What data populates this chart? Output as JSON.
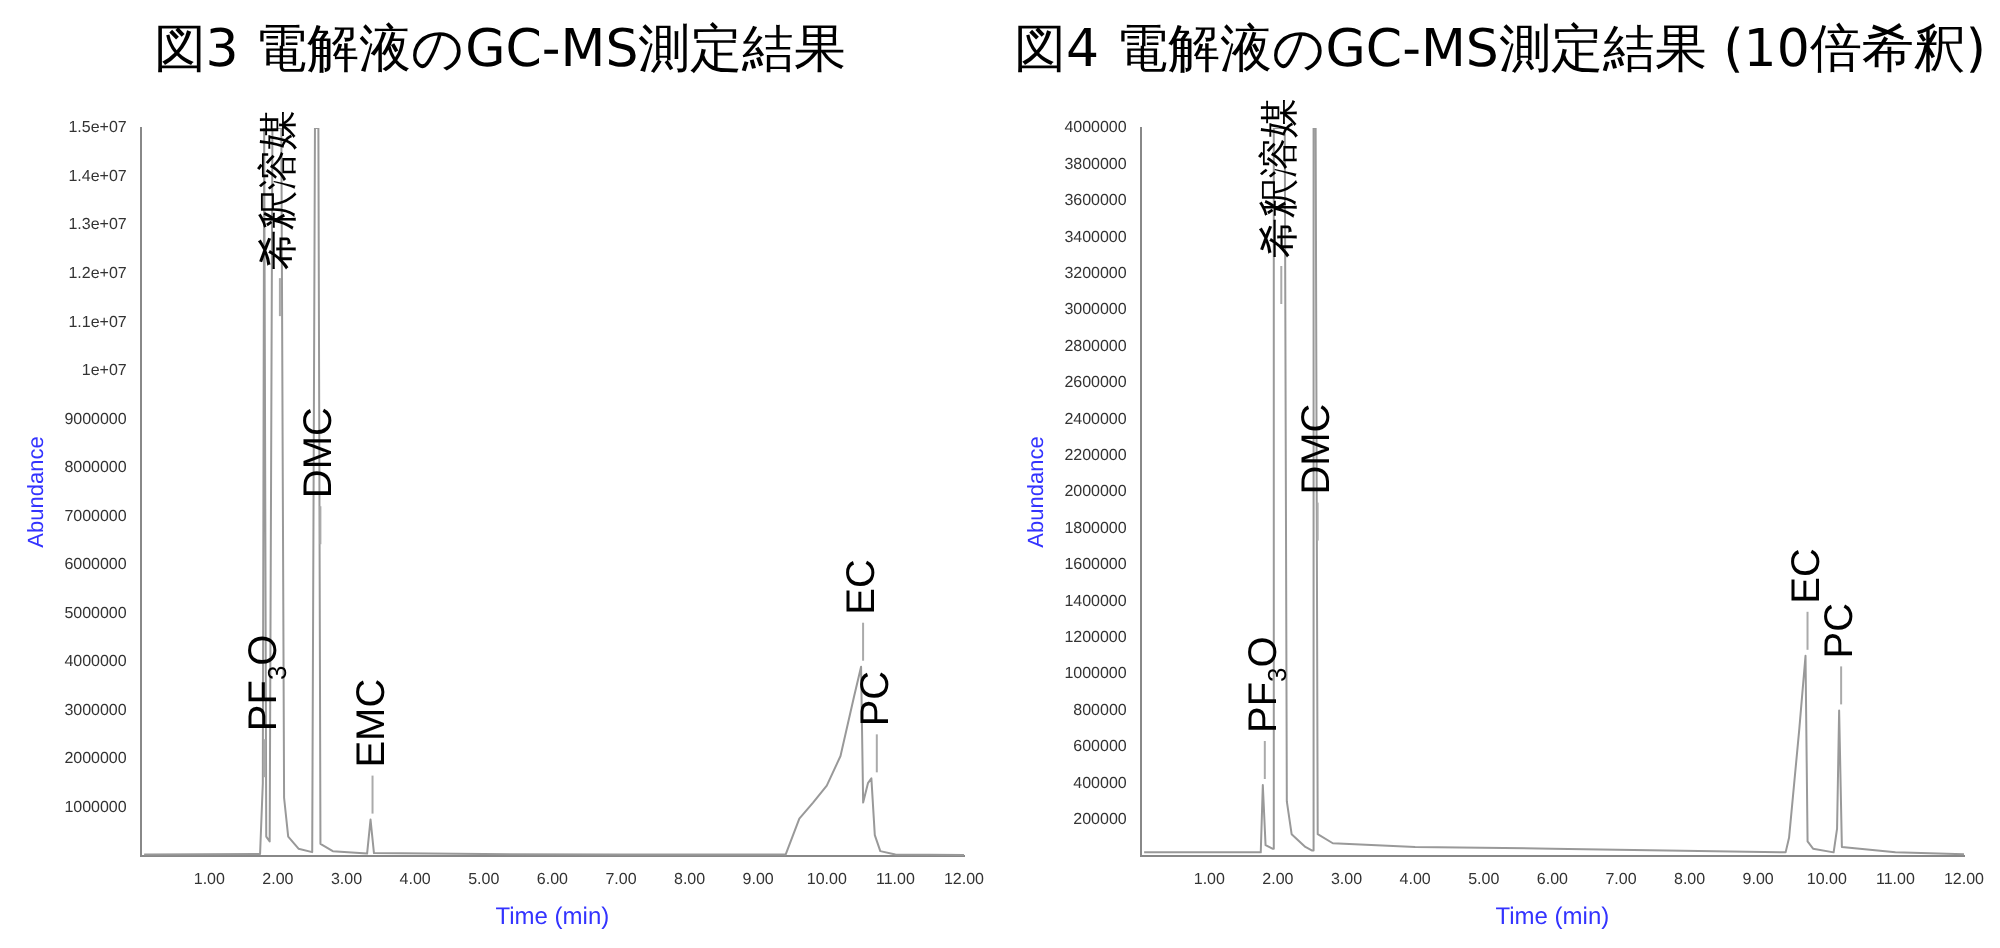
{
  "chart_data": [
    {
      "type": "line",
      "title": "図3 電解液のGC-MS測定結果",
      "xlabel": "Time (min)",
      "ylabel": "Abundance",
      "series": [
        {
          "color": "#999999",
          "x": [
            0.05,
            1.74,
            1.78,
            1.8,
            1.81,
            1.83,
            1.88,
            1.92,
            2.05,
            2.09,
            2.15,
            2.3,
            2.5,
            2.54,
            2.59,
            2.62,
            2.8,
            3.3,
            3.35,
            3.4,
            5,
            7,
            9.4,
            9.5,
            9.6,
            9.8,
            10,
            10.2,
            10.4,
            10.5,
            10.53,
            10.6,
            10.65,
            10.7,
            10.78,
            11,
            12
          ],
          "values": [
            30000,
            40000,
            1500000,
            15000000,
            15000000,
            400000,
            300000,
            15000000,
            15000000,
            1200000,
            400000,
            150000,
            80000,
            15000000,
            15000000,
            250000,
            100000,
            50000,
            750000,
            60000,
            40000,
            30000,
            30000,
            400000,
            770000,
            1100000,
            1450000,
            2060000,
            3300000,
            3900000,
            1100000,
            1500000,
            1600000,
            430000,
            100000,
            30000,
            20000
          ]
        }
      ],
      "xlim": [
        0,
        12
      ],
      "ylim": [
        0,
        15000000
      ],
      "xticks": [
        {
          "value": 1,
          "label": "1.00"
        },
        {
          "value": 2,
          "label": "2.00"
        },
        {
          "value": 3,
          "label": "3.00"
        },
        {
          "value": 4,
          "label": "4.00"
        },
        {
          "value": 5,
          "label": "5.00"
        },
        {
          "value": 6,
          "label": "6.00"
        },
        {
          "value": 7,
          "label": "7.00"
        },
        {
          "value": 8,
          "label": "8.00"
        },
        {
          "value": 9,
          "label": "9.00"
        },
        {
          "value": 10,
          "label": "10.00"
        },
        {
          "value": 11,
          "label": "11.00"
        },
        {
          "value": 12,
          "label": "12.00"
        }
      ],
      "yticks": [
        1000000,
        2000000,
        3000000,
        4000000,
        5000000,
        6000000,
        7000000,
        8000000,
        9000000,
        {
          "value": 10000000,
          "label": "1e+07"
        },
        {
          "value": 11000000,
          "label": "1.1e+07"
        },
        {
          "value": 12000000,
          "label": "1.2e+07"
        },
        {
          "value": 13000000,
          "label": "1.3e+07"
        },
        {
          "value": 14000000,
          "label": "1.4e+07"
        },
        {
          "value": 15000000,
          "label": "1.5e+07"
        }
      ],
      "annotations": [
        {
          "text": "PF$_{3}$O",
          "x": 1.78,
          "y": 1500000
        },
        {
          "text": "希釈溶媒",
          "x": 2.0,
          "y": 11000000
        },
        {
          "text": "DMC",
          "x": 2.59,
          "y": 6300000
        },
        {
          "text": "EMC",
          "x": 3.35,
          "y": 750000
        },
        {
          "text": "EC",
          "x": 10.5,
          "y": 3900000
        },
        {
          "text": "PC",
          "x": 10.7,
          "y": 1600000
        }
      ]
    },
    {
      "type": "line",
      "title": "図4 電解液のGC-MS測定結果 (10倍希釈)",
      "xlabel": "Time (min)",
      "ylabel": "Abundance",
      "series": [
        {
          "color": "#999999",
          "x": [
            0.05,
            1.75,
            1.78,
            1.82,
            1.92,
            1.94,
            2.1,
            2.13,
            2.2,
            2.4,
            2.5,
            2.52,
            2.55,
            2.58,
            2.8,
            4,
            6,
            9.4,
            9.45,
            9.6,
            9.69,
            9.72,
            9.8,
            10.1,
            10.15,
            10.18,
            10.22,
            11,
            12
          ],
          "values": [
            20000,
            20000,
            390000,
            60000,
            40000,
            4000000,
            4000000,
            300000,
            120000,
            50000,
            30000,
            4000000,
            4000000,
            120000,
            70000,
            50000,
            40000,
            20000,
            100000,
            700000,
            1100000,
            80000,
            40000,
            20000,
            150000,
            800000,
            50000,
            20000,
            10000
          ]
        }
      ],
      "xlim": [
        0,
        12
      ],
      "ylim": [
        0,
        4000000
      ],
      "xticks": [
        {
          "value": 1,
          "label": "1.00"
        },
        {
          "value": 2,
          "label": "2.00"
        },
        {
          "value": 3,
          "label": "3.00"
        },
        {
          "value": 4,
          "label": "4.00"
        },
        {
          "value": 5,
          "label": "5.00"
        },
        {
          "value": 6,
          "label": "6.00"
        },
        {
          "value": 7,
          "label": "7.00"
        },
        {
          "value": 8,
          "label": "8.00"
        },
        {
          "value": 9,
          "label": "9.00"
        },
        {
          "value": 10,
          "label": "10.00"
        },
        {
          "value": 11,
          "label": "11.00"
        },
        {
          "value": 12,
          "label": "12.00"
        }
      ],
      "yticks": [
        200000,
        400000,
        600000,
        800000,
        1000000,
        1200000,
        1400000,
        1600000,
        1800000,
        2000000,
        2200000,
        2400000,
        2600000,
        2800000,
        3000000,
        3200000,
        3400000,
        3600000,
        3800000,
        4000000
      ],
      "annotations": [
        {
          "text": "PF$_{3}$O",
          "x": 1.78,
          "y": 390000
        },
        {
          "text": "希釈溶媒",
          "x": 2.02,
          "y": 3000000
        },
        {
          "text": "DMC",
          "x": 2.55,
          "y": 1700000
        },
        {
          "text": "EC",
          "x": 9.69,
          "y": 1100000
        },
        {
          "text": "PC",
          "x": 10.18,
          "y": 800000
        }
      ]
    }
  ]
}
